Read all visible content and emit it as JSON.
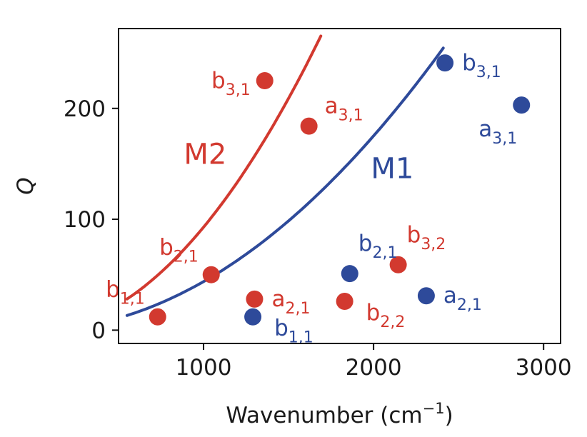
{
  "chart_data": {
    "type": "scatter",
    "xlabel": "Wavenumber (cm",
    "xlabel_sup": "−1",
    "xlabel_close": ")",
    "ylabel": "Q",
    "xlim": [
      500,
      3100
    ],
    "ylim": [
      -12,
      272
    ],
    "xticks": [
      1000,
      2000,
      3000
    ],
    "yticks": [
      0,
      100,
      200
    ],
    "grid": false,
    "colors": {
      "M1": "#2e4a9a",
      "M2": "#d2392f"
    },
    "series": [
      {
        "name": "M2",
        "color": "#d2392f",
        "curve": {
          "coef": 9.29e-05,
          "exp": 2,
          "x": [
            550,
            1690
          ]
        },
        "points": [
          {
            "x": 730,
            "y": 12,
            "main": "b",
            "sub": "1,1",
            "lpos": "above-left"
          },
          {
            "x": 1045,
            "y": 50,
            "main": "b",
            "sub": "2,1",
            "lpos": "above-left"
          },
          {
            "x": 1360,
            "y": 225,
            "main": "b",
            "sub": "3,1",
            "lpos": "left"
          },
          {
            "x": 1620,
            "y": 184,
            "main": "a",
            "sub": "3,1",
            "lpos": "above-right"
          },
          {
            "x": 1300,
            "y": 28,
            "main": "a",
            "sub": "2,1",
            "lpos": "right"
          },
          {
            "x": 1830,
            "y": 26,
            "main": "b",
            "sub": "2,2",
            "lpos": "right-below"
          },
          {
            "x": 2145,
            "y": 59,
            "main": "b",
            "sub": "3,2",
            "lpos": "above"
          }
        ]
      },
      {
        "name": "M1",
        "color": "#2e4a9a",
        "curve": {
          "coef": 4.38e-05,
          "exp": 2,
          "x": [
            550,
            2410
          ]
        },
        "points": [
          {
            "x": 1290,
            "y": 12,
            "main": "b",
            "sub": "1,1",
            "lpos": "right-below"
          },
          {
            "x": 1860,
            "y": 51,
            "main": "b",
            "sub": "2,1",
            "lpos": "above"
          },
          {
            "x": 2310,
            "y": 31,
            "main": "a",
            "sub": "2,1",
            "lpos": "right"
          },
          {
            "x": 2420,
            "y": 241,
            "main": "b",
            "sub": "3,1",
            "lpos": "right"
          },
          {
            "x": 2870,
            "y": 203,
            "main": "a",
            "sub": "3,1",
            "lpos": "below-left"
          }
        ]
      }
    ],
    "curve_labels": [
      {
        "series": "M2",
        "text": "M2",
        "x": 1010,
        "y": 150
      },
      {
        "series": "M1",
        "text": "M1",
        "x": 2110,
        "y": 137
      }
    ]
  }
}
